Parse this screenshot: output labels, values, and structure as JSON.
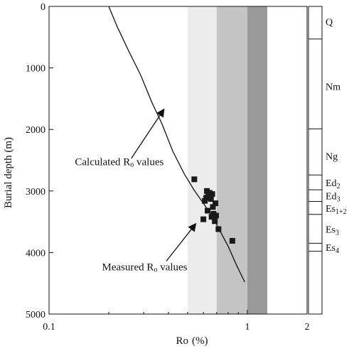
{
  "chart_data": {
    "type": "scatter",
    "title": "",
    "xlabel": {
      "main": "Ro",
      "unit": "(%)"
    },
    "ylabel": "Burial depth (m)",
    "x_scale": "log",
    "xlim": [
      0.1,
      2
    ],
    "ylim": [
      0,
      5000
    ],
    "y_inverted": true,
    "x_ticks": [
      {
        "value": 0.1,
        "label": "0.1"
      },
      {
        "value": 1,
        "label": "1"
      },
      {
        "value": 2,
        "label": "2"
      }
    ],
    "y_ticks": [
      {
        "value": 0,
        "label": "0"
      },
      {
        "value": 1000,
        "label": "1000"
      },
      {
        "value": 2000,
        "label": "2000"
      },
      {
        "value": 3000,
        "label": "3000"
      },
      {
        "value": 4000,
        "label": "4000"
      },
      {
        "value": 5000,
        "label": "5000"
      }
    ],
    "maturity_bands": [
      {
        "x_from": 0.5,
        "x_to": 0.7,
        "color": "#ececec"
      },
      {
        "x_from": 0.7,
        "x_to": 1.0,
        "color": "#c4c4c4"
      },
      {
        "x_from": 1.0,
        "x_to": 1.26,
        "color": "#9a9a9a"
      }
    ],
    "calculated_curve": [
      {
        "ro": 0.2,
        "depth": 0
      },
      {
        "ro": 0.22,
        "depth": 320
      },
      {
        "ro": 0.25,
        "depth": 700
      },
      {
        "ro": 0.29,
        "depth": 1120
      },
      {
        "ro": 0.33,
        "depth": 1560
      },
      {
        "ro": 0.37,
        "depth": 1900
      },
      {
        "ro": 0.42,
        "depth": 2350
      },
      {
        "ro": 0.48,
        "depth": 2720
      },
      {
        "ro": 0.54,
        "depth": 2990
      },
      {
        "ro": 0.6,
        "depth": 3200
      },
      {
        "ro": 0.66,
        "depth": 3400
      },
      {
        "ro": 0.72,
        "depth": 3620
      },
      {
        "ro": 0.8,
        "depth": 3900
      },
      {
        "ro": 0.88,
        "depth": 4200
      },
      {
        "ro": 0.97,
        "depth": 4480
      }
    ],
    "measured_points": [
      {
        "ro": 0.54,
        "depth": 2810
      },
      {
        "ro": 0.625,
        "depth": 3000
      },
      {
        "ro": 0.645,
        "depth": 3030
      },
      {
        "ro": 0.665,
        "depth": 3050
      },
      {
        "ro": 0.635,
        "depth": 3070
      },
      {
        "ro": 0.62,
        "depth": 3110
      },
      {
        "ro": 0.655,
        "depth": 3130
      },
      {
        "ro": 0.61,
        "depth": 3160
      },
      {
        "ro": 0.69,
        "depth": 3200
      },
      {
        "ro": 0.67,
        "depth": 3260
      },
      {
        "ro": 0.63,
        "depth": 3320
      },
      {
        "ro": 0.675,
        "depth": 3370
      },
      {
        "ro": 0.695,
        "depth": 3400
      },
      {
        "ro": 0.66,
        "depth": 3420
      },
      {
        "ro": 0.6,
        "depth": 3460
      },
      {
        "ro": 0.685,
        "depth": 3490
      },
      {
        "ro": 0.715,
        "depth": 3620
      },
      {
        "ro": 0.84,
        "depth": 3810
      }
    ],
    "annotations": [
      {
        "lines": [
          {
            "text": "Calculated R",
            "sub": "o",
            "tail": " values"
          }
        ],
        "anchor": {
          "ro": 0.135,
          "depth": 2580
        },
        "arrow_from": {
          "ro": 0.26,
          "depth": 2470
        },
        "arrow_to": {
          "ro": 0.38,
          "depth": 1670
        }
      },
      {
        "lines": [
          {
            "text": "Measured R",
            "sub": "o",
            "tail": " values"
          }
        ],
        "anchor": {
          "ro": 0.185,
          "depth": 4290
        },
        "arrow_from": {
          "ro": 0.39,
          "depth": 4140
        },
        "arrow_to": {
          "ro": 0.55,
          "depth": 3530
        }
      }
    ],
    "strata_boundaries": [
      530,
      1990,
      2740,
      2980,
      3170,
      3380,
      3850,
      3980
    ],
    "strata_labels": [
      {
        "text": "Q",
        "sub": "",
        "depth": 250
      },
      {
        "text": "Nm",
        "sub": "",
        "depth": 1300
      },
      {
        "text": "Ng",
        "sub": "",
        "depth": 2430
      },
      {
        "text": "Ed",
        "sub": "2",
        "depth": 2865
      },
      {
        "text": "Ed",
        "sub": "3",
        "depth": 3075
      },
      {
        "text": "Es",
        "sub": "1+2",
        "depth": 3280
      },
      {
        "text": "Es",
        "sub": "3",
        "depth": 3620
      },
      {
        "text": "Es",
        "sub": "4",
        "depth": 3915
      }
    ]
  }
}
